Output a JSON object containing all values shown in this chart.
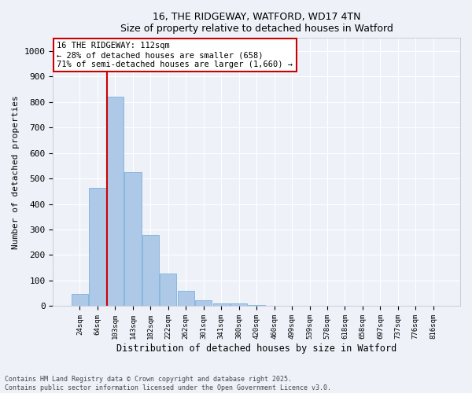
{
  "title_line1": "16, THE RIDGEWAY, WATFORD, WD17 4TN",
  "title_line2": "Size of property relative to detached houses in Watford",
  "xlabel": "Distribution of detached houses by size in Watford",
  "ylabel": "Number of detached properties",
  "categories": [
    "24sqm",
    "64sqm",
    "103sqm",
    "143sqm",
    "182sqm",
    "222sqm",
    "262sqm",
    "301sqm",
    "341sqm",
    "380sqm",
    "420sqm",
    "460sqm",
    "499sqm",
    "539sqm",
    "578sqm",
    "618sqm",
    "658sqm",
    "697sqm",
    "737sqm",
    "776sqm",
    "816sqm"
  ],
  "values": [
    47,
    462,
    820,
    525,
    278,
    128,
    60,
    22,
    10,
    10,
    3,
    2,
    2,
    1,
    0,
    0,
    0,
    0,
    0,
    0,
    0
  ],
  "bar_color": "#aec8e8",
  "bar_edge_color": "#6aaad4",
  "property_line_index": 2,
  "annotation_text": "16 THE RIDGEWAY: 112sqm\n← 28% of detached houses are smaller (658)\n71% of semi-detached houses are larger (1,660) →",
  "annotation_box_color": "#ffffff",
  "annotation_box_edge_color": "#cc0000",
  "vline_color": "#cc0000",
  "ylim": [
    0,
    1050
  ],
  "yticks": [
    0,
    100,
    200,
    300,
    400,
    500,
    600,
    700,
    800,
    900,
    1000
  ],
  "background_color": "#eef2f8",
  "grid_color": "#ffffff",
  "footer_line1": "Contains HM Land Registry data © Crown copyright and database right 2025.",
  "footer_line2": "Contains public sector information licensed under the Open Government Licence v3.0."
}
